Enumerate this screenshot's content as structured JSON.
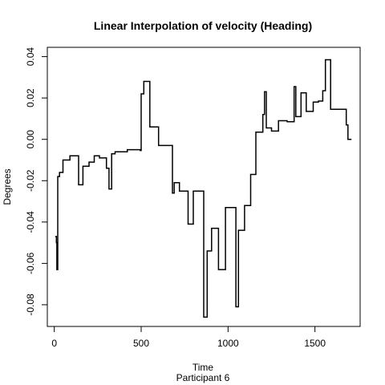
{
  "chart_data": {
    "type": "line",
    "step": true,
    "title": "Linear Interpolation of velocity (Heading)",
    "xlabel": "Time",
    "sublabel": "Participant  6",
    "ylabel": "Degrees",
    "xlim": [
      -40,
      1760
    ],
    "ylim": [
      -0.0905,
      0.0445
    ],
    "xticks": [
      0,
      500,
      1000,
      1500
    ],
    "yticks": [
      -0.08,
      -0.06,
      -0.04,
      -0.02,
      0.0,
      0.02,
      0.04
    ],
    "ytick_labels": [
      "-0.08",
      "-0.06",
      "-0.04",
      "-0.02",
      "0.00",
      "0.02",
      "0.04"
    ],
    "grid": false,
    "series": [
      {
        "color": "#000000",
        "points": [
          [
            5,
            -0.047
          ],
          [
            12,
            -0.05
          ],
          [
            15,
            -0.063
          ],
          [
            20,
            -0.018
          ],
          [
            30,
            -0.016
          ],
          [
            50,
            -0.01
          ],
          [
            90,
            -0.008
          ],
          [
            140,
            -0.022
          ],
          [
            165,
            -0.013
          ],
          [
            200,
            -0.011
          ],
          [
            230,
            -0.008
          ],
          [
            260,
            -0.009
          ],
          [
            300,
            -0.014
          ],
          [
            315,
            -0.024
          ],
          [
            330,
            -0.007
          ],
          [
            350,
            -0.006
          ],
          [
            420,
            -0.005
          ],
          [
            495,
            -0.0054
          ],
          [
            500,
            0.022
          ],
          [
            515,
            0.028
          ],
          [
            550,
            0.006
          ],
          [
            580,
            0.006
          ],
          [
            600,
            -0.003
          ],
          [
            655,
            -0.003
          ],
          [
            680,
            -0.026
          ],
          [
            690,
            -0.021
          ],
          [
            720,
            -0.025
          ],
          [
            770,
            -0.041
          ],
          [
            800,
            -0.025
          ],
          [
            860,
            -0.086
          ],
          [
            880,
            -0.054
          ],
          [
            905,
            -0.043
          ],
          [
            945,
            -0.063
          ],
          [
            985,
            -0.033
          ],
          [
            1045,
            -0.081
          ],
          [
            1060,
            -0.044
          ],
          [
            1095,
            -0.032
          ],
          [
            1130,
            -0.017
          ],
          [
            1160,
            0.0035
          ],
          [
            1200,
            0.012
          ],
          [
            1210,
            0.023
          ],
          [
            1220,
            0.0055
          ],
          [
            1250,
            0.004
          ],
          [
            1290,
            0.009
          ],
          [
            1340,
            0.0085
          ],
          [
            1380,
            0.0255
          ],
          [
            1390,
            0.011
          ],
          [
            1420,
            0.0225
          ],
          [
            1450,
            0.0135
          ],
          [
            1490,
            0.018
          ],
          [
            1520,
            0.0185
          ],
          [
            1545,
            0.0235
          ],
          [
            1560,
            0.0385
          ],
          [
            1590,
            0.0145
          ],
          [
            1650,
            0.0145
          ],
          [
            1675,
            0.0145
          ],
          [
            1680,
            0.007
          ],
          [
            1690,
            0.0
          ],
          [
            1710,
            0.0
          ]
        ]
      }
    ]
  }
}
